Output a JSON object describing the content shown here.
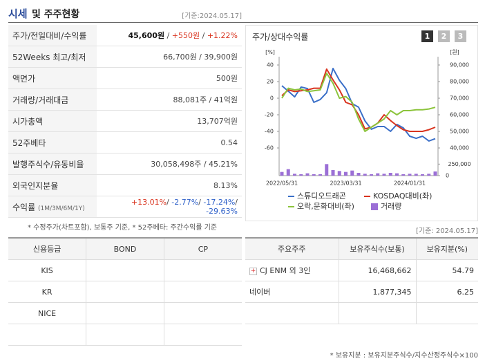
{
  "header": {
    "title_main": "시세",
    "title_rest": "및 주주현황",
    "date": "[기준:2024.05.17]"
  },
  "quote_table": {
    "rows": [
      {
        "label": "주가/전일대비/수익률",
        "value": [
          "45,600원",
          " / ",
          "+550원",
          " / ",
          "+1.22%"
        ]
      },
      {
        "label": "52Weeks 최고/최저",
        "value": [
          "66,700원 / 39,900원"
        ]
      },
      {
        "label": "액면가",
        "value": [
          "500원"
        ]
      },
      {
        "label": "거래량/거래대금",
        "value": [
          "88,081주 / 41억원"
        ]
      },
      {
        "label": "시가총액",
        "value": [
          "13,707억원"
        ]
      },
      {
        "label": "52주베타",
        "value": [
          "0.54"
        ]
      },
      {
        "label": "발행주식수/유동비율",
        "value": [
          "30,058,498주 / 45.21%"
        ]
      },
      {
        "label": "외국인지분율",
        "value": [
          "8.13%"
        ]
      },
      {
        "label": "수익률",
        "sublabel": "(1M/3M/6M/1Y)",
        "value": [
          "+13.01%",
          "/ ",
          "-2.77%",
          "/ ",
          "-17.24%",
          "/ ",
          "-29.63%"
        ]
      }
    ]
  },
  "notes": {
    "left": "* 수정주가(차트포함), 보통주 기준, * 52주베타: 주간수익률 기준",
    "date": "[기준: 2024.05.17]",
    "right": "* 보유지분 : 보유지분주식수/지수산정주식수×100"
  },
  "chart_data": {
    "type": "line",
    "title": "주가/상대수익률",
    "buttons": [
      "1",
      "2",
      "3"
    ],
    "y_unit": "[%]",
    "y2_unit": "[원]",
    "categories": [
      "2022/05/31",
      null,
      null,
      null,
      null,
      null,
      null,
      null,
      null,
      null,
      "2023/03/31",
      null,
      null,
      null,
      null,
      null,
      null,
      null,
      null,
      null,
      "2024/01/31",
      null,
      null,
      null,
      null
    ],
    "ylim": [
      -70,
      50
    ],
    "yticks": [
      40,
      20,
      0,
      -20,
      -40,
      -60
    ],
    "y2lim": [
      35000,
      95000
    ],
    "y2ticks": [
      {
        "value": 90000,
        "label": "90,000"
      },
      {
        "value": 80000,
        "label": "80,000"
      },
      {
        "value": 70000,
        "label": "70,000"
      },
      {
        "value": 60000,
        "label": "60,000"
      },
      {
        "value": 50000,
        "label": "50,000"
      },
      {
        "value": 40000,
        "label": "40,000"
      }
    ],
    "grid": false,
    "series": [
      {
        "name": "스튜디오드래곤",
        "color": "#3a6fc8",
        "axis": "y2",
        "values": [
          77500,
          74200,
          70800,
          76700,
          75800,
          67500,
          69200,
          73300,
          87900,
          80800,
          75800,
          66700,
          64600,
          56300,
          51300,
          52900,
          52900,
          50000,
          54200,
          52100,
          47100,
          45800,
          47100,
          44200,
          45600
        ]
      },
      {
        "name": "KOSDAQ대비(좌)",
        "color": "#d9341f",
        "values": [
          3,
          10,
          8,
          9,
          10,
          12,
          12,
          35,
          22,
          10,
          -5,
          -8,
          -20,
          -37,
          -35,
          -30,
          -20,
          -27,
          -33,
          -38,
          -40,
          -40,
          -40,
          -38,
          -35
        ]
      },
      {
        "name": "오락,문화대비(좌)",
        "color": "#8cc43c",
        "values": [
          0,
          12,
          10,
          11,
          8,
          9,
          10,
          30,
          18,
          0,
          2,
          -5,
          -25,
          -40,
          -35,
          -30,
          -25,
          -15,
          -20,
          -15,
          -15,
          -14,
          -14,
          -13,
          -11
        ]
      }
    ],
    "volume": {
      "name": "거래량",
      "color": "#9b6fd6",
      "lim": [
        0,
        330000
      ],
      "ticks": [
        {
          "value": 250000,
          "label": "250,000"
        },
        0
      ],
      "values": [
        80000,
        140000,
        40000,
        30000,
        50000,
        30000,
        30000,
        250000,
        120000,
        100000,
        80000,
        110000,
        60000,
        40000,
        30000,
        50000,
        40000,
        60000,
        50000,
        30000,
        40000,
        40000,
        30000,
        40000,
        90000
      ]
    }
  },
  "rating_table": {
    "header": [
      "신용등급",
      "BOND",
      "CP"
    ],
    "rows": [
      [
        "KIS"
      ],
      [
        "KR"
      ],
      [
        "NICE"
      ]
    ]
  },
  "holder_table": {
    "header": [
      "주요주주",
      "보유주식수(보통)",
      "보유지분(%)"
    ],
    "rows": [
      [
        "CJ ENM 외 3인",
        "16,468,662",
        "54.79"
      ],
      [
        "네이버",
        "1,877,345",
        "6.25"
      ]
    ]
  }
}
